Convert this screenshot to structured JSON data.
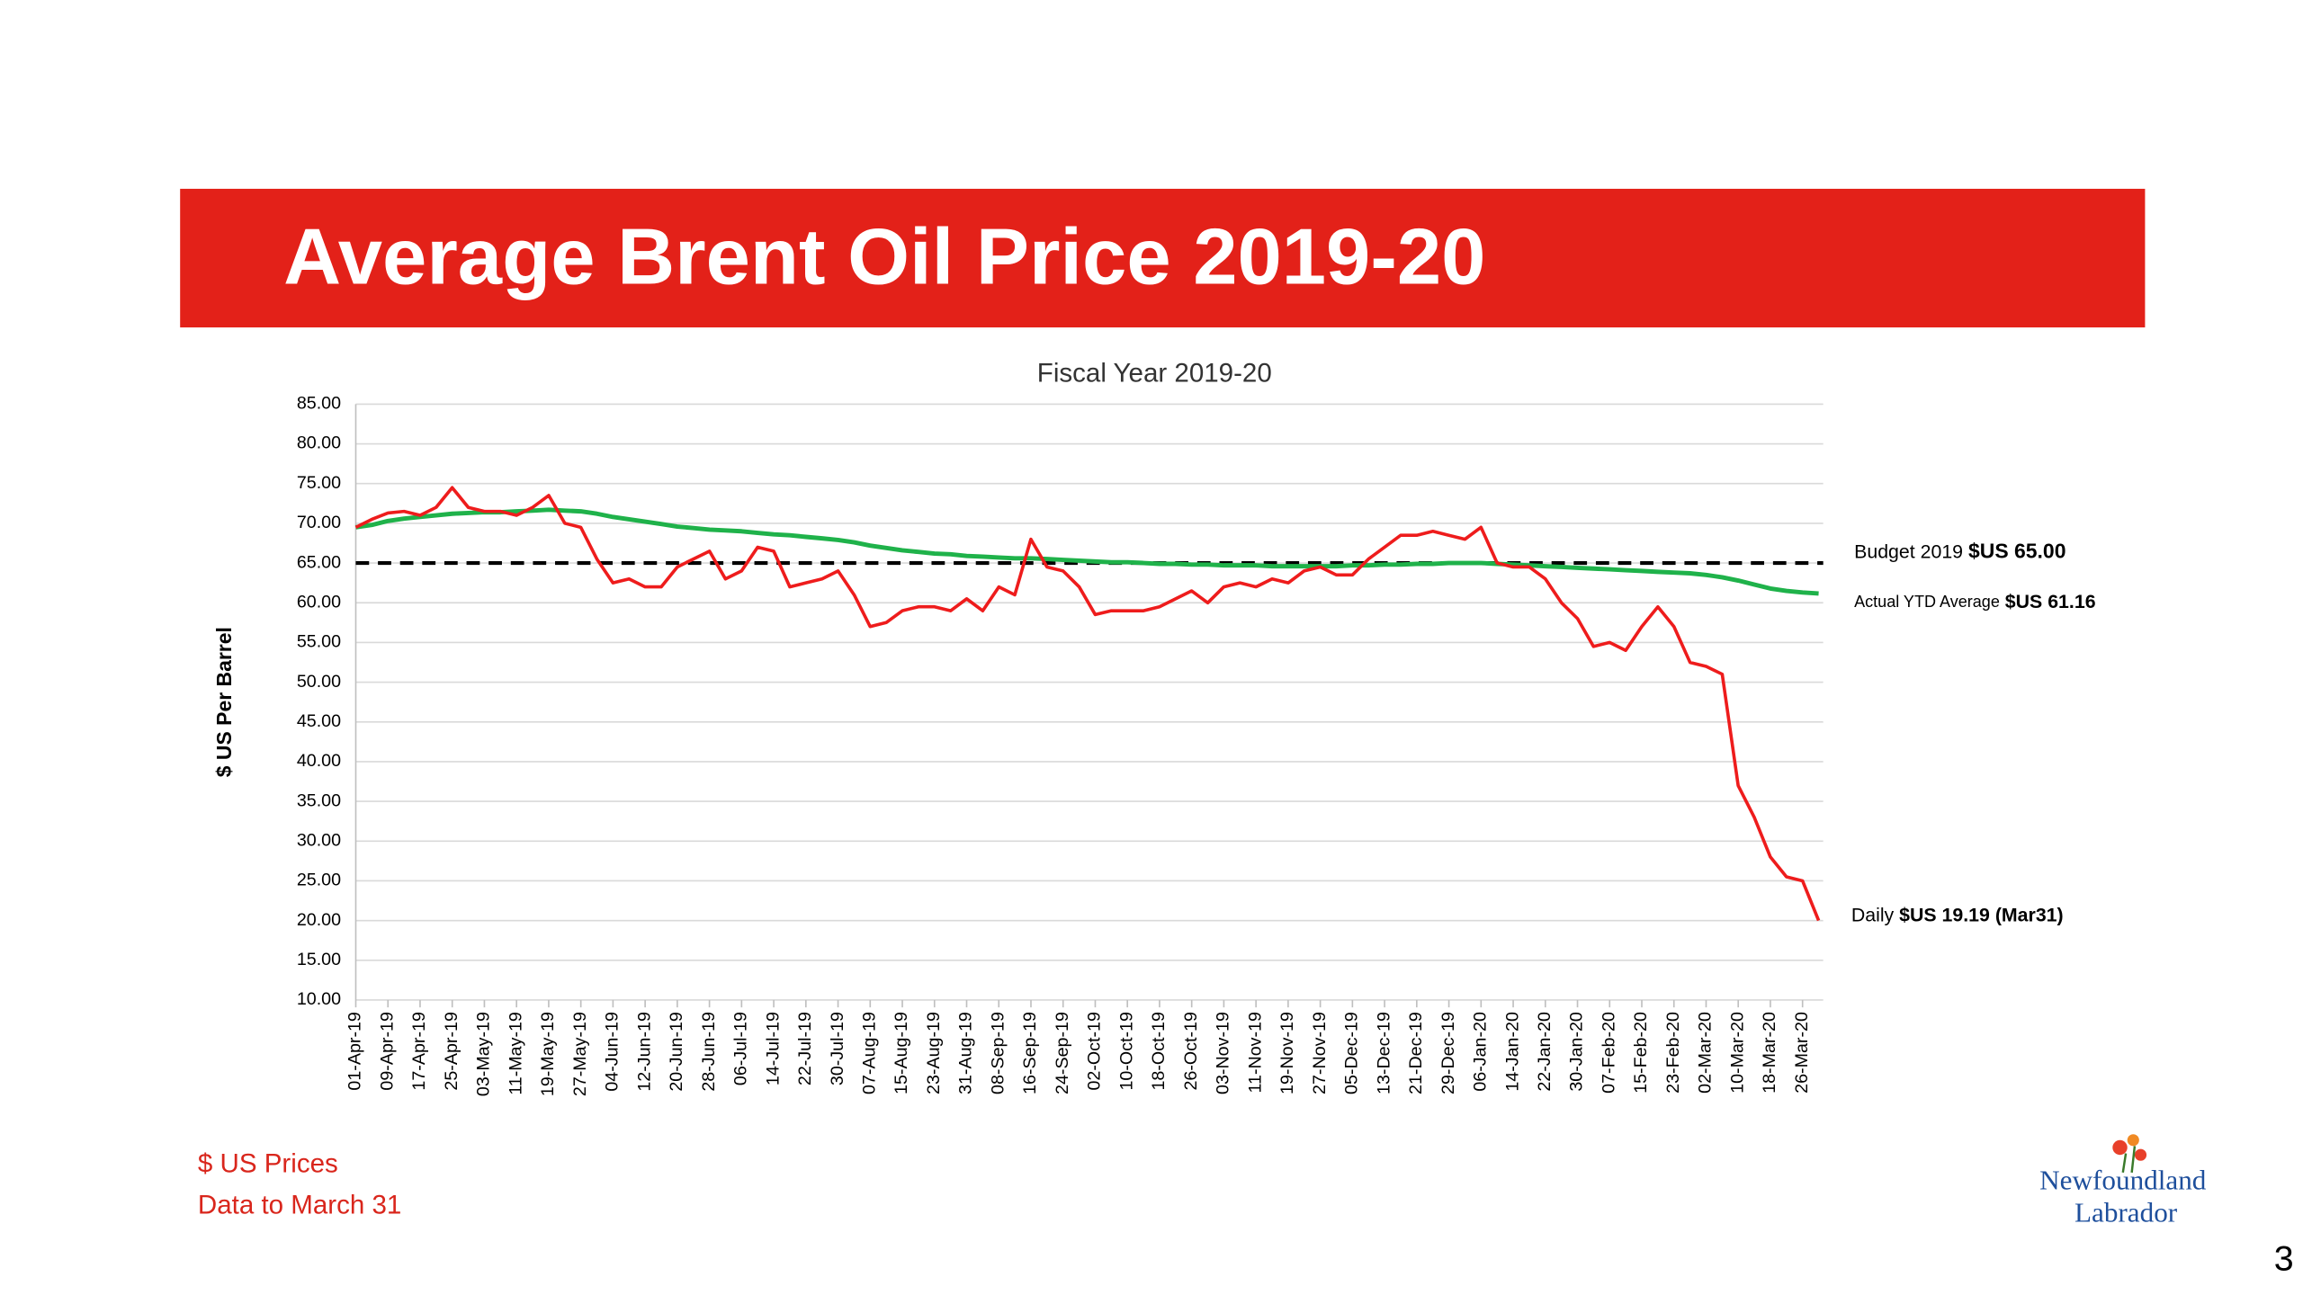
{
  "header": {
    "title": "Average Brent Oil Price 2019-20"
  },
  "chart_data": {
    "type": "line",
    "title": "Fiscal Year 2019-20",
    "y_label": "$ US Per Barrel",
    "categories": [
      "01-Apr-19",
      null,
      "09-Apr-19",
      null,
      "17-Apr-19",
      null,
      "25-Apr-19",
      null,
      "03-May-19",
      null,
      "11-May-19",
      null,
      "19-May-19",
      null,
      "27-May-19",
      null,
      "04-Jun-19",
      null,
      "12-Jun-19",
      null,
      "20-Jun-19",
      null,
      "28-Jun-19",
      null,
      "06-Jul-19",
      null,
      "14-Jul-19",
      null,
      "22-Jul-19",
      null,
      "30-Jul-19",
      null,
      "07-Aug-19",
      null,
      "15-Aug-19",
      null,
      "23-Aug-19",
      null,
      "31-Aug-19",
      null,
      "08-Sep-19",
      null,
      "16-Sep-19",
      null,
      "24-Sep-19",
      null,
      "02-Oct-19",
      null,
      "10-Oct-19",
      null,
      "18-Oct-19",
      null,
      "26-Oct-19",
      null,
      "03-Nov-19",
      null,
      "11-Nov-19",
      null,
      "19-Nov-19",
      null,
      "27-Nov-19",
      null,
      "05-Dec-19",
      null,
      "13-Dec-19",
      null,
      "21-Dec-19",
      null,
      "29-Dec-19",
      null,
      "06-Jan-20",
      null,
      "14-Jan-20",
      null,
      "22-Jan-20",
      null,
      "30-Jan-20",
      null,
      "07-Feb-20",
      null,
      "15-Feb-20",
      null,
      "23-Feb-20",
      null,
      "02-Mar-20",
      null,
      "10-Mar-20",
      null,
      "18-Mar-20",
      null,
      "26-Mar-20",
      null
    ],
    "series": [
      {
        "color": "#ee1c1c",
        "values": [
          69.5,
          70.5,
          71.3,
          71.5,
          71,
          72,
          74.5,
          72,
          71.5,
          71.5,
          71,
          72,
          73.5,
          70,
          69.5,
          65.5,
          62.5,
          63,
          62,
          62,
          64.5,
          65.5,
          66.5,
          63,
          64,
          67,
          66.5,
          62,
          62.5,
          63,
          64,
          61,
          57,
          57.5,
          59,
          59.5,
          59.5,
          59,
          60.5,
          59,
          62,
          61,
          68,
          64.5,
          64,
          62,
          58.5,
          59,
          59,
          59,
          59.5,
          60.5,
          61.5,
          60,
          62,
          62.5,
          62,
          63,
          62.5,
          64,
          64.5,
          63.5,
          63.5,
          65.5,
          67,
          68.5,
          68.5,
          69,
          68.5,
          68,
          69.5,
          65,
          64.5,
          64.5,
          63,
          60,
          58,
          54.5,
          55,
          54,
          57,
          59.5,
          57,
          52.5,
          52,
          51,
          37,
          33,
          28,
          25.5,
          25,
          20
        ]
      },
      {
        "color": "#1fb24a",
        "values": [
          69.5,
          69.8,
          70.3,
          70.6,
          70.8,
          71,
          71.2,
          71.3,
          71.4,
          71.4,
          71.5,
          71.6,
          71.7,
          71.6,
          71.5,
          71.2,
          70.8,
          70.5,
          70.2,
          69.9,
          69.6,
          69.4,
          69.2,
          69.1,
          69,
          68.8,
          68.6,
          68.5,
          68.3,
          68.1,
          67.9,
          67.6,
          67.2,
          66.9,
          66.6,
          66.4,
          66.2,
          66.1,
          65.9,
          65.8,
          65.7,
          65.6,
          65.6,
          65.5,
          65.4,
          65.3,
          65.2,
          65.1,
          65.1,
          65,
          64.9,
          64.9,
          64.8,
          64.8,
          64.7,
          64.7,
          64.7,
          64.6,
          64.6,
          64.6,
          64.6,
          64.6,
          64.7,
          64.7,
          64.8,
          64.8,
          64.9,
          64.9,
          65,
          65,
          65,
          64.9,
          64.8,
          64.7,
          64.6,
          64.5,
          64.4,
          64.3,
          64.2,
          64.1,
          64,
          63.9,
          63.8,
          63.7,
          63.5,
          63.2,
          62.8,
          62.3,
          61.8,
          61.5,
          61.3,
          61.16
        ]
      }
    ],
    "budget_line": {
      "value": 65,
      "color": "#000000"
    },
    "annotations": {
      "budget_label": "Budget 2019",
      "budget_value": "$US 65.00",
      "actual_label": "Actual YTD Average",
      "actual_value": "$US 61.16",
      "daily_label": "Daily",
      "daily_value": "$US 19.19 (Mar31)"
    },
    "ylim": [
      10,
      85
    ],
    "yticks": [
      {
        "value": 10,
        "label": "10.00"
      },
      {
        "value": 15,
        "label": "15.00"
      },
      {
        "value": 20,
        "label": "20.00"
      },
      {
        "value": 25,
        "label": "25.00"
      },
      {
        "value": 30,
        "label": "30.00"
      },
      {
        "value": 35,
        "label": "35.00"
      },
      {
        "value": 40,
        "label": "40.00"
      },
      {
        "value": 45,
        "label": "45.00"
      },
      {
        "value": 50,
        "label": "50.00"
      },
      {
        "value": 55,
        "label": "55.00"
      },
      {
        "value": 60,
        "label": "60.00"
      },
      {
        "value": 65,
        "label": "65.00"
      },
      {
        "value": 70,
        "label": "70.00"
      },
      {
        "value": 75,
        "label": "75.00"
      },
      {
        "value": 80,
        "label": "80.00"
      },
      {
        "value": 85,
        "label": "85.00"
      }
    ],
    "grid": true
  },
  "notes": [
    "$ US Prices",
    "Data to March 31"
  ],
  "logo": {
    "line1": "Newfoundland",
    "line2": "Labrador"
  },
  "page_number": "3"
}
